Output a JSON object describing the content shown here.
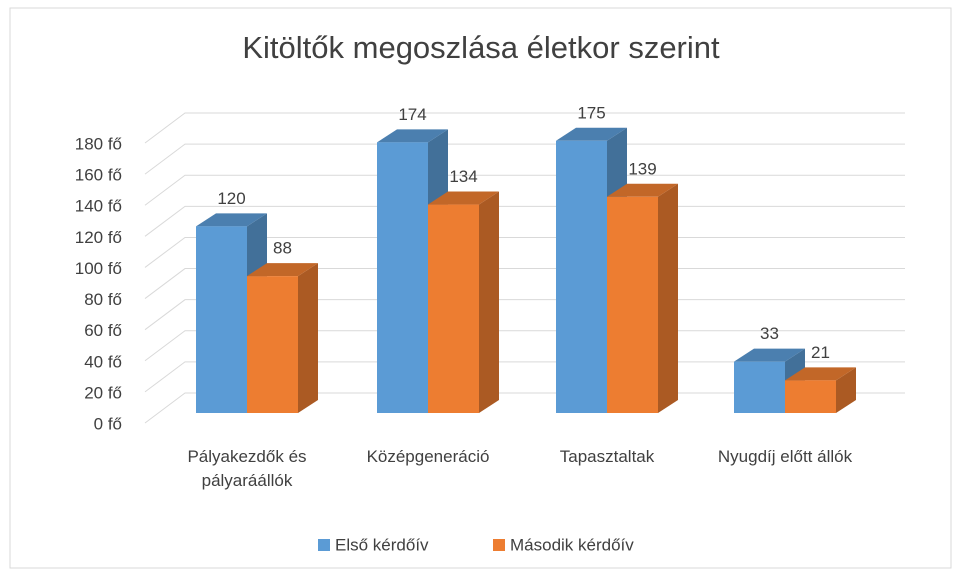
{
  "chart_data": {
    "type": "bar3d",
    "title": "Kitöltők megoszlása életkor szerint",
    "categories": [
      "Pályakezdők és pályaráállók",
      "Középgeneráció",
      "Tapasztaltak",
      "Nyugdíj előtt állók"
    ],
    "series": [
      {
        "name": "Első kérdőív",
        "color": "#5b9bd5",
        "values": [
          120,
          174,
          175,
          33
        ]
      },
      {
        "name": "Második kérdőív",
        "color": "#ed7d31",
        "values": [
          88,
          134,
          139,
          21
        ]
      }
    ],
    "ylim": [
      0,
      180
    ],
    "yticks": [
      {
        "value": 0,
        "label": "0 fő"
      },
      {
        "value": 20,
        "label": "20 fő"
      },
      {
        "value": 40,
        "label": "40 fő"
      },
      {
        "value": 60,
        "label": "60 fő"
      },
      {
        "value": 80,
        "label": "80 fő"
      },
      {
        "value": 100,
        "label": "100 fő"
      },
      {
        "value": 120,
        "label": "120 fő"
      },
      {
        "value": 140,
        "label": "140 fő"
      },
      {
        "value": 160,
        "label": "160 fő"
      },
      {
        "value": 180,
        "label": "180 fő"
      }
    ],
    "grid": true,
    "legend": "bottom"
  }
}
